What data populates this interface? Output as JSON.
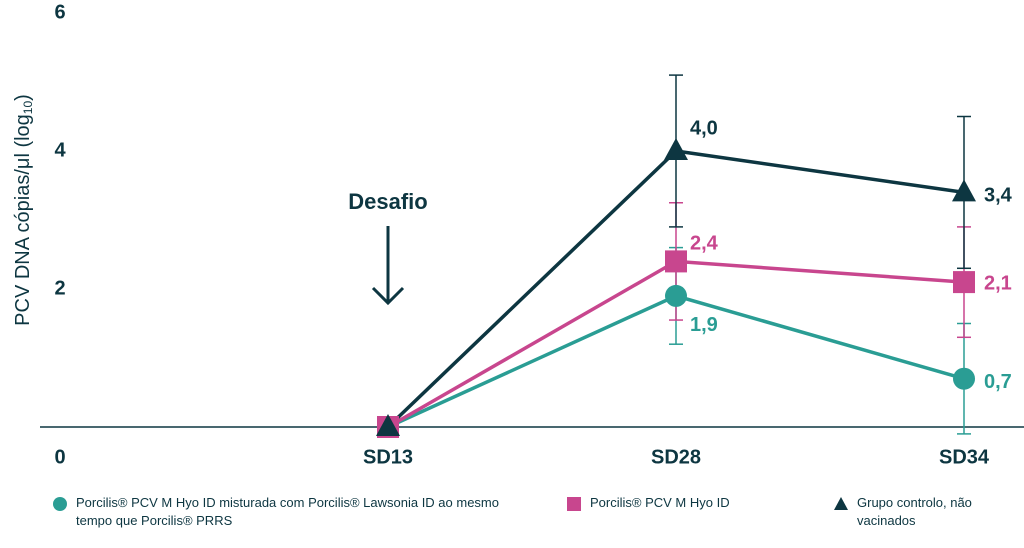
{
  "chart_data": {
    "type": "line",
    "ylabel": "PCV DNA cópias/μl (log",
    "ylabel_sub": "10",
    "ylabel_end": ")",
    "annotation": "Desafio",
    "categories": [
      "SD13",
      "SD28",
      "SD34"
    ],
    "ylim": [
      0,
      6
    ],
    "yticks": [
      0,
      2,
      4,
      6
    ],
    "series": [
      {
        "name": "Porcilis® PCV M Hyo ID misturada com Porcilis® Lawsonia ID ao mesmo tempo que Porcilis® PRRS",
        "color": "#2a9d94",
        "marker": "circle",
        "values": [
          0,
          1.9,
          0.7
        ],
        "value_labels": [
          null,
          "1,9",
          "0,7"
        ],
        "errors": [
          0,
          0.7,
          0.8
        ]
      },
      {
        "name": "Porcilis® PCV M Hyo ID",
        "color": "#c8468e",
        "marker": "square",
        "values": [
          0,
          2.4,
          2.1
        ],
        "value_labels": [
          null,
          "2,4",
          "2,1"
        ],
        "errors": [
          0,
          0.85,
          0.8
        ]
      },
      {
        "name": "Grupo controlo, não vacinados",
        "color": "#0d3641",
        "marker": "triangle",
        "values": [
          0,
          4.0,
          3.4
        ],
        "value_labels": [
          null,
          "4,0",
          "3,4"
        ],
        "errors": [
          0,
          1.1,
          1.1
        ]
      }
    ]
  }
}
